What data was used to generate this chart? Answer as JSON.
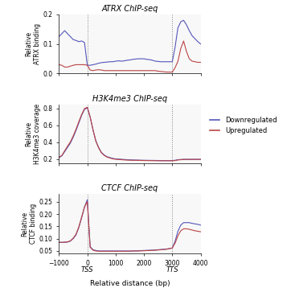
{
  "title1": "ATRX ChIP-seq",
  "title2": "H3K4me3 ChIP-seq",
  "title3": "CTCF ChIP-seq",
  "ylabel1": "Relative\nATRX binding",
  "ylabel2": "Relative\nH3K4me3 coverage",
  "ylabel3": "Relative\nCTCF binding",
  "xlabel": "Relative distance (bp)",
  "xmin": -1000,
  "xmax": 4000,
  "vline1": 0,
  "vline2": 3000,
  "color_down": "#5555bb",
  "color_up": "#bb4444",
  "legend_labels": [
    "Downregulated",
    "Upregulated"
  ],
  "atrx_x": [
    -1000,
    -900,
    -800,
    -700,
    -600,
    -500,
    -400,
    -300,
    -200,
    -100,
    0,
    100,
    200,
    300,
    400,
    500,
    600,
    700,
    800,
    900,
    1000,
    1100,
    1200,
    1300,
    1400,
    1500,
    1600,
    1700,
    1800,
    1900,
    2000,
    2100,
    2200,
    2300,
    2400,
    2500,
    2600,
    2700,
    2800,
    2900,
    3000,
    3100,
    3200,
    3300,
    3400,
    3500,
    3600,
    3700,
    3800,
    3900,
    4000
  ],
  "atrx_down": [
    0.125,
    0.135,
    0.145,
    0.135,
    0.125,
    0.115,
    0.112,
    0.108,
    0.11,
    0.105,
    0.028,
    0.028,
    0.03,
    0.032,
    0.035,
    0.037,
    0.038,
    0.039,
    0.04,
    0.04,
    0.042,
    0.043,
    0.042,
    0.043,
    0.045,
    0.046,
    0.048,
    0.049,
    0.05,
    0.05,
    0.05,
    0.048,
    0.047,
    0.045,
    0.042,
    0.041,
    0.04,
    0.04,
    0.04,
    0.04,
    0.04,
    0.09,
    0.155,
    0.175,
    0.18,
    0.165,
    0.145,
    0.128,
    0.118,
    0.108,
    0.1
  ],
  "atrx_up": [
    0.03,
    0.028,
    0.022,
    0.022,
    0.025,
    0.028,
    0.03,
    0.03,
    0.03,
    0.03,
    0.028,
    0.012,
    0.01,
    0.012,
    0.013,
    0.012,
    0.01,
    0.01,
    0.01,
    0.01,
    0.01,
    0.01,
    0.01,
    0.01,
    0.01,
    0.01,
    0.01,
    0.01,
    0.01,
    0.01,
    0.01,
    0.01,
    0.01,
    0.01,
    0.01,
    0.008,
    0.007,
    0.006,
    0.005,
    0.005,
    0.005,
    0.02,
    0.042,
    0.085,
    0.11,
    0.075,
    0.05,
    0.042,
    0.04,
    0.038,
    0.038
  ],
  "atrx_ylim": [
    0,
    0.2
  ],
  "atrx_yticks": [
    0.0,
    0.1,
    0.2
  ],
  "h3k4_x": [
    -1000,
    -900,
    -800,
    -700,
    -600,
    -500,
    -400,
    -300,
    -200,
    -100,
    0,
    100,
    200,
    300,
    400,
    500,
    600,
    700,
    800,
    900,
    1000,
    1200,
    1400,
    1600,
    1800,
    2000,
    2200,
    2400,
    2600,
    2800,
    3000,
    3100,
    3200,
    3400,
    3600,
    3800,
    4000
  ],
  "h3k4_down": [
    0.22,
    0.24,
    0.29,
    0.34,
    0.39,
    0.46,
    0.54,
    0.63,
    0.72,
    0.79,
    0.81,
    0.7,
    0.55,
    0.42,
    0.34,
    0.28,
    0.25,
    0.23,
    0.22,
    0.21,
    0.205,
    0.2,
    0.195,
    0.192,
    0.19,
    0.188,
    0.187,
    0.186,
    0.185,
    0.185,
    0.185,
    0.188,
    0.195,
    0.2,
    0.2,
    0.2,
    0.2
  ],
  "h3k4_up": [
    0.225,
    0.245,
    0.3,
    0.355,
    0.405,
    0.475,
    0.555,
    0.645,
    0.73,
    0.8,
    0.815,
    0.7,
    0.55,
    0.415,
    0.335,
    0.275,
    0.245,
    0.225,
    0.215,
    0.205,
    0.2,
    0.195,
    0.19,
    0.188,
    0.187,
    0.185,
    0.184,
    0.183,
    0.182,
    0.182,
    0.182,
    0.185,
    0.192,
    0.197,
    0.198,
    0.198,
    0.198
  ],
  "h3k4_ylim": [
    0.15,
    0.85
  ],
  "h3k4_yticks": [
    0.2,
    0.4,
    0.6,
    0.8
  ],
  "ctcf_x": [
    -1000,
    -900,
    -800,
    -700,
    -600,
    -500,
    -400,
    -300,
    -200,
    -100,
    0,
    100,
    200,
    300,
    400,
    500,
    600,
    700,
    800,
    900,
    1000,
    1200,
    1400,
    1600,
    1800,
    2000,
    2200,
    2400,
    2600,
    2800,
    3000,
    3100,
    3200,
    3300,
    3400,
    3500,
    3600,
    3700,
    3800,
    3900,
    4000
  ],
  "ctcf_down": [
    0.085,
    0.085,
    0.085,
    0.086,
    0.09,
    0.1,
    0.115,
    0.145,
    0.185,
    0.228,
    0.258,
    0.068,
    0.055,
    0.052,
    0.05,
    0.05,
    0.05,
    0.05,
    0.05,
    0.05,
    0.05,
    0.05,
    0.05,
    0.05,
    0.051,
    0.052,
    0.053,
    0.054,
    0.056,
    0.058,
    0.062,
    0.09,
    0.13,
    0.155,
    0.165,
    0.165,
    0.165,
    0.162,
    0.16,
    0.158,
    0.155
  ],
  "ctcf_up": [
    0.085,
    0.085,
    0.086,
    0.087,
    0.091,
    0.102,
    0.118,
    0.148,
    0.188,
    0.228,
    0.25,
    0.065,
    0.053,
    0.05,
    0.049,
    0.049,
    0.049,
    0.049,
    0.049,
    0.049,
    0.049,
    0.049,
    0.049,
    0.05,
    0.05,
    0.051,
    0.052,
    0.053,
    0.055,
    0.057,
    0.062,
    0.082,
    0.112,
    0.132,
    0.14,
    0.14,
    0.138,
    0.135,
    0.132,
    0.13,
    0.128
  ],
  "ctcf_ylim": [
    0.04,
    0.28
  ],
  "ctcf_yticks": [
    0.05,
    0.1,
    0.15,
    0.2,
    0.25
  ],
  "xticks": [
    -1000,
    0,
    1000,
    2000,
    3000,
    4000
  ],
  "tss_label": "TSS",
  "tts_label": "TTS",
  "fig_bg": "#ffffff",
  "panel_bg": "#f8f8f8"
}
